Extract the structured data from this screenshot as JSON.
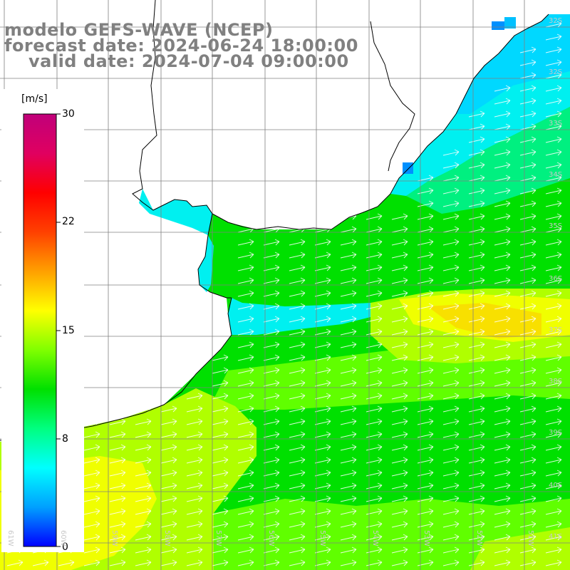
{
  "title": {
    "line1": "modelo GEFS-WAVE (NCEP)",
    "line2": "forecast date: 2024-06-24 18:00:00",
    "line3": "valid date: 2024-07-04 09:00:00"
  },
  "colorbar": {
    "unit": "[m/s]",
    "ticks": [
      "30",
      "22",
      "15",
      "8",
      "0"
    ],
    "colors": [
      "#0000ff",
      "#00a0ff",
      "#00ffff",
      "#00ff80",
      "#00e000",
      "#80ff00",
      "#ffff00",
      "#ffa000",
      "#ff4000",
      "#ff0000",
      "#e00060",
      "#c0007a"
    ]
  },
  "map": {
    "lat_labels": [
      "32S",
      "33S",
      "34S",
      "35S",
      "36S",
      "37S",
      "38S",
      "39S",
      "40S",
      "41S"
    ],
    "lon_labels": [
      "61W",
      "60W",
      "59W",
      "58W",
      "57W",
      "56W",
      "55W",
      "54W",
      "53W",
      "52W",
      "51W"
    ],
    "water_colors": {
      "cyan": "#00f0f0",
      "aqua_green": "#00f080",
      "green": "#00e000",
      "light_green": "#60ff00",
      "yellow_green": "#b0ff00",
      "yellow": "#f0ff00",
      "blue": "#0090ff"
    },
    "arrow_color": "#ffffff",
    "coast_color": "#000000",
    "grid_color": "#808080"
  }
}
